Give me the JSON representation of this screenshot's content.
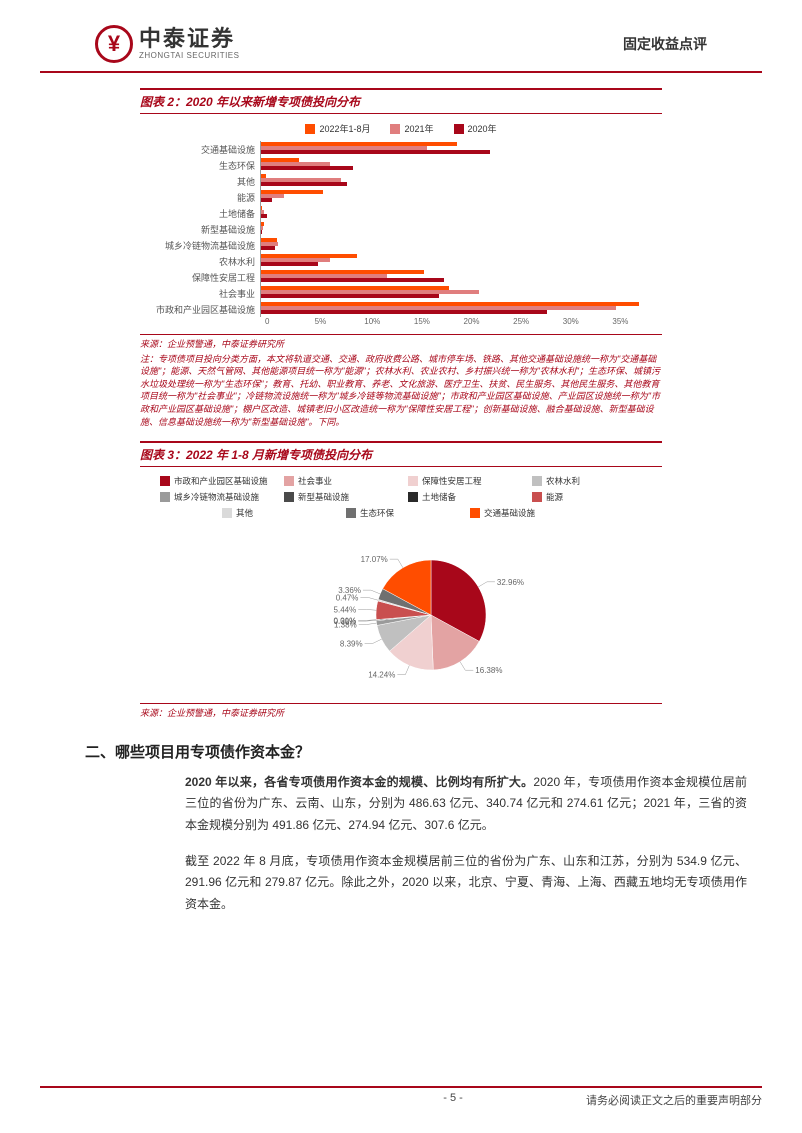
{
  "header": {
    "logo_cn": "中泰证券",
    "logo_en": "ZHONGTAI SECURITIES",
    "doc_type": "固定收益点评"
  },
  "chart2": {
    "title": "图表 2：2020 年以来新增专项债投向分布",
    "legend": [
      {
        "label": "2022年1-8月",
        "color": "#ff4d00"
      },
      {
        "label": "2021年",
        "color": "#e07e7e"
      },
      {
        "label": "2020年",
        "color": "#a8071a"
      }
    ],
    "categories": [
      {
        "name": "交通基础设施",
        "v2022": 17.07,
        "v2021": 14.5,
        "v2020": 20.0
      },
      {
        "name": "生态环保",
        "v2022": 3.36,
        "v2021": 6.0,
        "v2020": 8.0
      },
      {
        "name": "其他",
        "v2022": 0.47,
        "v2021": 7.0,
        "v2020": 7.5
      },
      {
        "name": "能源",
        "v2022": 5.44,
        "v2021": 2.0,
        "v2020": 1.0
      },
      {
        "name": "土地储备",
        "v2022": 0.01,
        "v2021": 0.3,
        "v2020": 0.5
      },
      {
        "name": "新型基础设施",
        "v2022": 0.3,
        "v2021": 0.2,
        "v2020": 0.1
      },
      {
        "name": "城乡冷链物流基础设施",
        "v2022": 1.38,
        "v2021": 1.5,
        "v2020": 1.2
      },
      {
        "name": "农林水利",
        "v2022": 8.39,
        "v2021": 6.0,
        "v2020": 5.0
      },
      {
        "name": "保障性安居工程",
        "v2022": 14.24,
        "v2021": 11.0,
        "v2020": 16.0
      },
      {
        "name": "社会事业",
        "v2022": 16.38,
        "v2021": 19.0,
        "v2020": 15.5
      },
      {
        "name": "市政和产业园区基础设施",
        "v2022": 32.96,
        "v2021": 31.0,
        "v2020": 25.0
      }
    ],
    "xmax": 35,
    "xtick_step": 5,
    "xticks": [
      "0",
      "5%",
      "10%",
      "15%",
      "20%",
      "25%",
      "30%",
      "35%"
    ],
    "source": "来源：企业预警通，中泰证券研究所",
    "note": "注：专项债项目投向分类方面，本文将轨道交通、交通、政府收费公路、城市停车场、铁路、其他交通基础设施统一称为\"交通基础设施\"；能源、天然气管网、其他能源项目统一称为\"能源\"；农林水利、农业农村、乡村振兴统一称为\"农林水利\"；生态环保、城镇污水垃圾处理统一称为\"生态环保\"；教育、托幼、职业教育、养老、文化旅游、医疗卫生、扶贫、民生服务、其他民生服务、其他教育项目统一称为\"社会事业\"；冷链物流设施统一称为\"城乡冷链等物流基础设施\"；市政和产业园区基础设施、产业园区设施统一称为\"市政和产业园区基础设施\"；棚户区改造、城镇老旧小区改造统一称为\"保障性安居工程\"；创新基础设施、融合基础设施、新型基础设施、信息基础设施统一称为\"新型基础设施\"。下同。"
  },
  "chart3": {
    "title": "图表 3：2022 年 1-8 月新增专项债投向分布",
    "legend": [
      {
        "label": "市政和产业园区基础设施",
        "color": "#a8071a"
      },
      {
        "label": "社会事业",
        "color": "#e3a3a3"
      },
      {
        "label": "保障性安居工程",
        "color": "#f0d0d0"
      },
      {
        "label": "农林水利",
        "color": "#c0c0c0"
      },
      {
        "label": "城乡冷链物流基础设施",
        "color": "#9a9a9a"
      },
      {
        "label": "新型基础设施",
        "color": "#4a4a4a"
      },
      {
        "label": "土地储备",
        "color": "#2a2a2a"
      },
      {
        "label": "能源",
        "color": "#c94f4f"
      },
      {
        "label": "其他",
        "color": "#dadada"
      },
      {
        "label": "生态环保",
        "color": "#707070"
      },
      {
        "label": "交通基础设施",
        "color": "#ff4d00"
      }
    ],
    "slices": [
      {
        "label": "市政和产业园区基础设施",
        "value": 32.96,
        "color": "#a8071a"
      },
      {
        "label": "社会事业",
        "value": 16.38,
        "color": "#e3a3a3"
      },
      {
        "label": "保障性安居工程",
        "value": 14.24,
        "color": "#f0d0d0"
      },
      {
        "label": "农林水利",
        "value": 8.39,
        "color": "#c0c0c0"
      },
      {
        "label": "城乡冷链物流基础设施",
        "value": 1.38,
        "color": "#9a9a9a"
      },
      {
        "label": "新型基础设施",
        "value": 0.3,
        "color": "#4a4a4a"
      },
      {
        "label": "土地储备",
        "value": 0.01,
        "color": "#2a2a2a"
      },
      {
        "label": "能源",
        "value": 5.44,
        "color": "#c94f4f"
      },
      {
        "label": "其他",
        "value": 0.47,
        "color": "#dadada"
      },
      {
        "label": "生态环保",
        "value": 3.36,
        "color": "#707070"
      },
      {
        "label": "交通基础设施",
        "value": 17.07,
        "color": "#ff4d00"
      }
    ],
    "labels_visible": [
      "17.07%",
      "32.96%",
      "16.38%",
      "14.24%",
      "8.39%",
      "1.38%",
      "0.30%",
      "0.01%",
      "5.44%",
      "0.47%",
      "3.36%"
    ],
    "source": "来源：企业预警通，中泰证券研究所"
  },
  "section2": {
    "title": "二、哪些项目用专项债作资本金？",
    "para1_bold": "2020 年以来，各省专项债用作资本金的规模、比例均有所扩大。",
    "para1_rest": "2020 年，专项债用作资本金规模位居前三位的省份为广东、云南、山东，分别为 486.63 亿元、340.74 亿元和 274.61 亿元；2021 年，三省的资本金规模分别为 491.86 亿元、274.94 亿元、307.6 亿元。",
    "para2": "截至 2022 年 8 月底，专项债用作资本金规模居前三位的省份为广东、山东和江苏，分别为 534.9 亿元、291.96 亿元和 279.87 亿元。除此之外，2020 以来，北京、宁夏、青海、上海、西藏五地均无专项债用作资本金。"
  },
  "footer": {
    "page": "- 5 -",
    "disclaimer": "请务必阅读正文之后的重要声明部分"
  },
  "colors": {
    "brand": "#a8071a",
    "accent": "#ff4d00",
    "light": "#e3a3a3"
  }
}
